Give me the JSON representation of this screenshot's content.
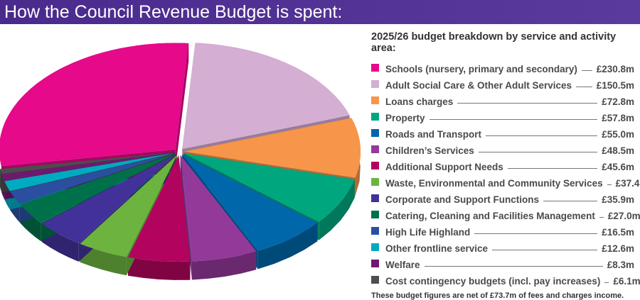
{
  "header": {
    "title": "How the Council Revenue Budget is spent:"
  },
  "chart_data": {
    "type": "pie",
    "title": "2025/26 budget breakdown by service and activity area:",
    "unit": "£m",
    "slices": [
      {
        "label": "Schools (nursery, primary and secondary)",
        "value": 230.8,
        "display": "£230.8m",
        "color": "#e6098a"
      },
      {
        "label": "Adult Social Care & Other Adult Services",
        "value": 150.5,
        "display": "£150.5m",
        "color": "#d4aed3"
      },
      {
        "label": "Loans charges",
        "value": 72.8,
        "display": "£72.8m",
        "color": "#f7954a"
      },
      {
        "label": "Property",
        "value": 57.8,
        "display": "£57.8m",
        "color": "#00a67e"
      },
      {
        "label": "Roads and Transport",
        "value": 55.0,
        "display": "£55.0m",
        "color": "#0067aa"
      },
      {
        "label": "Children’s Services",
        "value": 48.5,
        "display": "£48.5m",
        "color": "#93399a"
      },
      {
        "label": "Additional Support Needs",
        "value": 45.6,
        "display": "£45.6m",
        "color": "#b2045e"
      },
      {
        "label": "Waste, Environmental and Community Services",
        "value": 37.4,
        "display": "£37.4m",
        "color": "#6cb33f"
      },
      {
        "label": "Corporate and Support Functions",
        "value": 35.9,
        "display": "£35.9m",
        "color": "#43319a"
      },
      {
        "label": "Catering, Cleaning and Facilities Management",
        "value": 27.0,
        "display": "£27.0m",
        "color": "#00704a"
      },
      {
        "label": "High Life Highland",
        "value": 16.5,
        "display": "£16.5m",
        "color": "#2b4fa0"
      },
      {
        "label": "Other frontline service",
        "value": 12.6,
        "display": "£12.6m",
        "color": "#00abc2"
      },
      {
        "label": "Welfare",
        "value": 8.3,
        "display": "£8.3m",
        "color": "#6e1870"
      },
      {
        "label": "Cost contingency budgets (incl. pay increases)",
        "value": 6.1,
        "display": "£6.1m",
        "color": "#4d4d4f"
      }
    ],
    "note": "These budget figures are net of £73.7m of fees and charges income."
  }
}
